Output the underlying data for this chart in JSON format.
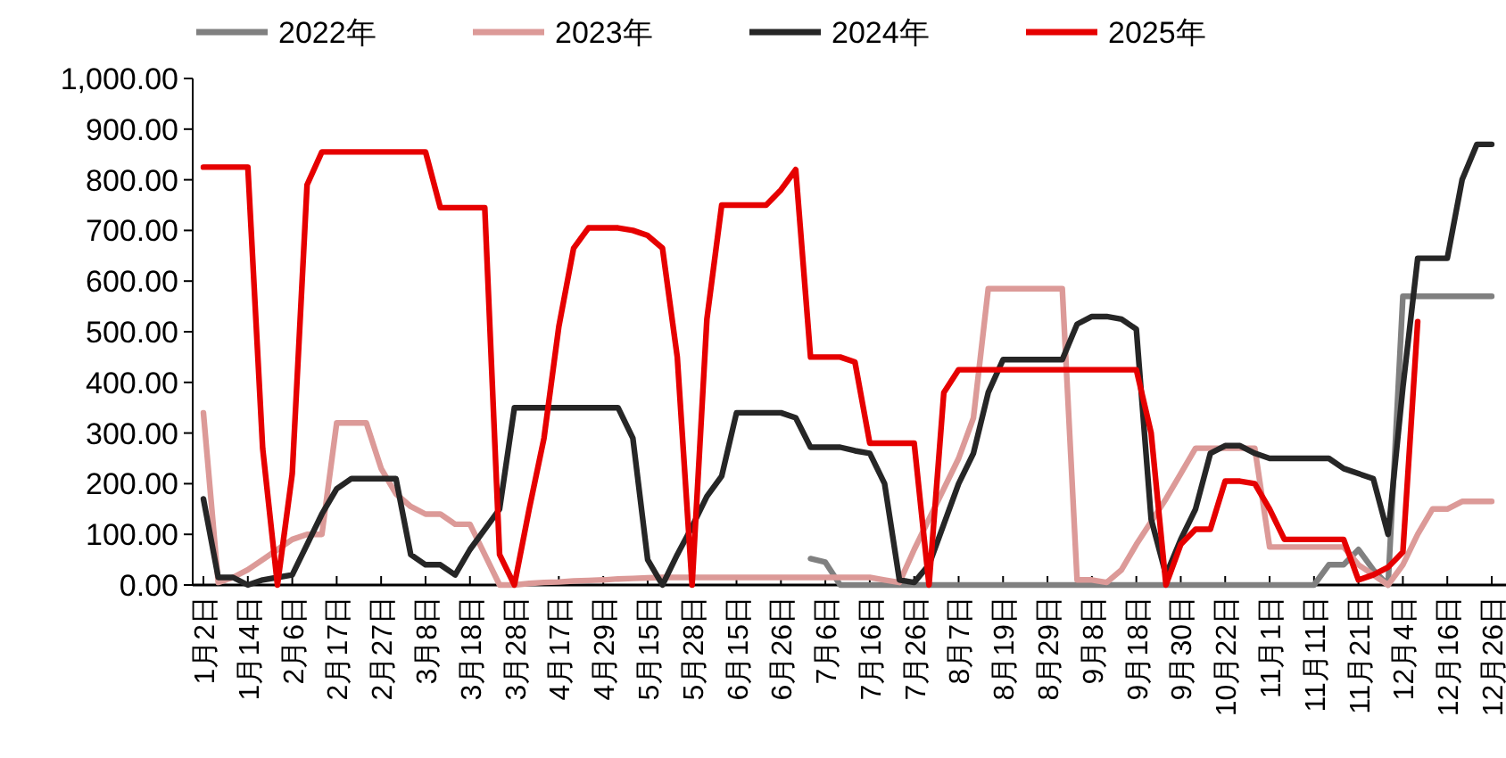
{
  "chart_data": {
    "type": "line",
    "legend": "top",
    "grid": false,
    "line_style": "solid",
    "categories": [
      "1月2日",
      null,
      null,
      "1月14日",
      null,
      null,
      "2月6日",
      null,
      null,
      "2月17日",
      null,
      null,
      "2月27日",
      null,
      null,
      "3月8日",
      null,
      null,
      "3月18日",
      null,
      null,
      "3月28日",
      null,
      null,
      "4月17日",
      null,
      null,
      "4月29日",
      null,
      null,
      "5月15日",
      null,
      null,
      "5月28日",
      null,
      null,
      "6月15日",
      null,
      null,
      "6月26日",
      null,
      null,
      "7月6日",
      null,
      null,
      "7月16日",
      null,
      null,
      "7月26日",
      null,
      null,
      "8月7日",
      null,
      null,
      "8月19日",
      null,
      null,
      "8月29日",
      null,
      null,
      "9月8日",
      null,
      null,
      "9月18日",
      null,
      null,
      "9月30日",
      null,
      null,
      "10月22日",
      null,
      null,
      "11月1日",
      null,
      null,
      "11月11日",
      null,
      null,
      "11月21日",
      null,
      null,
      "12月4日",
      null,
      null,
      "12月16日",
      null,
      null,
      "12月26日"
    ],
    "ylim": [
      0,
      1000
    ],
    "yticks": [
      {
        "value": 0,
        "label": "0.00"
      },
      {
        "value": 100,
        "label": "100.00"
      },
      {
        "value": 200,
        "label": "200.00"
      },
      {
        "value": 300,
        "label": "300.00"
      },
      {
        "value": 400,
        "label": "400.00"
      },
      {
        "value": 500,
        "label": "500.00"
      },
      {
        "value": 600,
        "label": "600.00"
      },
      {
        "value": 700,
        "label": "700.00"
      },
      {
        "value": 800,
        "label": "800.00"
      },
      {
        "value": 900,
        "label": "900.00"
      },
      {
        "value": 1000,
        "label": "1,000.00"
      }
    ],
    "series": [
      {
        "name": "2022年",
        "color": "#808080",
        "values": [
          null,
          null,
          null,
          null,
          null,
          null,
          null,
          null,
          null,
          null,
          null,
          null,
          null,
          null,
          null,
          null,
          null,
          null,
          null,
          null,
          null,
          null,
          null,
          null,
          null,
          null,
          null,
          null,
          null,
          null,
          null,
          null,
          null,
          null,
          null,
          null,
          null,
          null,
          null,
          null,
          null,
          52,
          45,
          0,
          0,
          0,
          0,
          0,
          0,
          0,
          0,
          0,
          0,
          0,
          0,
          0,
          0,
          0,
          0,
          0,
          0,
          0,
          0,
          0,
          0,
          0,
          0,
          0,
          0,
          0,
          0,
          0,
          0,
          0,
          0,
          0,
          40,
          40,
          70,
          30,
          0,
          570,
          570,
          570,
          570,
          570,
          570,
          570
        ]
      },
      {
        "name": "2023年",
        "color": "#dc9a98",
        "values": [
          340,
          5,
          15,
          30,
          50,
          70,
          90,
          100,
          100,
          320,
          320,
          320,
          230,
          180,
          155,
          140,
          140,
          120,
          120,
          60,
          0,
          0,
          3,
          5,
          6,
          8,
          9,
          10,
          12,
          13,
          14,
          15,
          15,
          15,
          15,
          15,
          15,
          15,
          15,
          15,
          15,
          15,
          15,
          15,
          15,
          15,
          10,
          5,
          70,
          130,
          190,
          250,
          330,
          585,
          585,
          585,
          585,
          585,
          585,
          10,
          10,
          5,
          30,
          80,
          125,
          170,
          220,
          270,
          270,
          270,
          270,
          270,
          75,
          75,
          75,
          75,
          75,
          75,
          40,
          20,
          0,
          40,
          100,
          150,
          150,
          165,
          165,
          165
        ]
      },
      {
        "name": "2024年",
        "color": "#262626",
        "values": [
          170,
          15,
          15,
          0,
          10,
          15,
          20,
          80,
          140,
          190,
          210,
          210,
          210,
          210,
          60,
          40,
          40,
          20,
          70,
          110,
          150,
          350,
          350,
          350,
          350,
          350,
          350,
          350,
          350,
          290,
          50,
          0,
          60,
          115,
          175,
          215,
          340,
          340,
          340,
          340,
          330,
          272,
          272,
          272,
          265,
          260,
          200,
          10,
          5,
          40,
          120,
          200,
          260,
          380,
          445,
          445,
          445,
          445,
          445,
          515,
          530,
          530,
          525,
          505,
          130,
          20,
          90,
          150,
          260,
          275,
          275,
          260,
          250,
          250,
          250,
          250,
          250,
          230,
          220,
          210,
          100,
          390,
          645,
          645,
          645,
          800,
          870,
          870
        ]
      },
      {
        "name": "2025年",
        "color": "#e60000",
        "values": [
          825,
          825,
          825,
          825,
          270,
          0,
          220,
          790,
          855,
          855,
          855,
          855,
          855,
          855,
          855,
          855,
          745,
          745,
          745,
          745,
          60,
          0,
          150,
          290,
          510,
          665,
          705,
          705,
          705,
          700,
          690,
          665,
          450,
          0,
          525,
          750,
          750,
          750,
          750,
          780,
          820,
          450,
          450,
          450,
          440,
          280,
          280,
          280,
          280,
          0,
          380,
          425,
          425,
          425,
          425,
          425,
          425,
          425,
          425,
          425,
          425,
          425,
          425,
          425,
          300,
          0,
          80,
          110,
          110,
          205,
          205,
          200,
          150,
          90,
          90,
          90,
          90,
          90,
          10,
          20,
          35,
          65,
          520,
          null,
          null,
          null,
          null,
          null
        ]
      }
    ]
  }
}
